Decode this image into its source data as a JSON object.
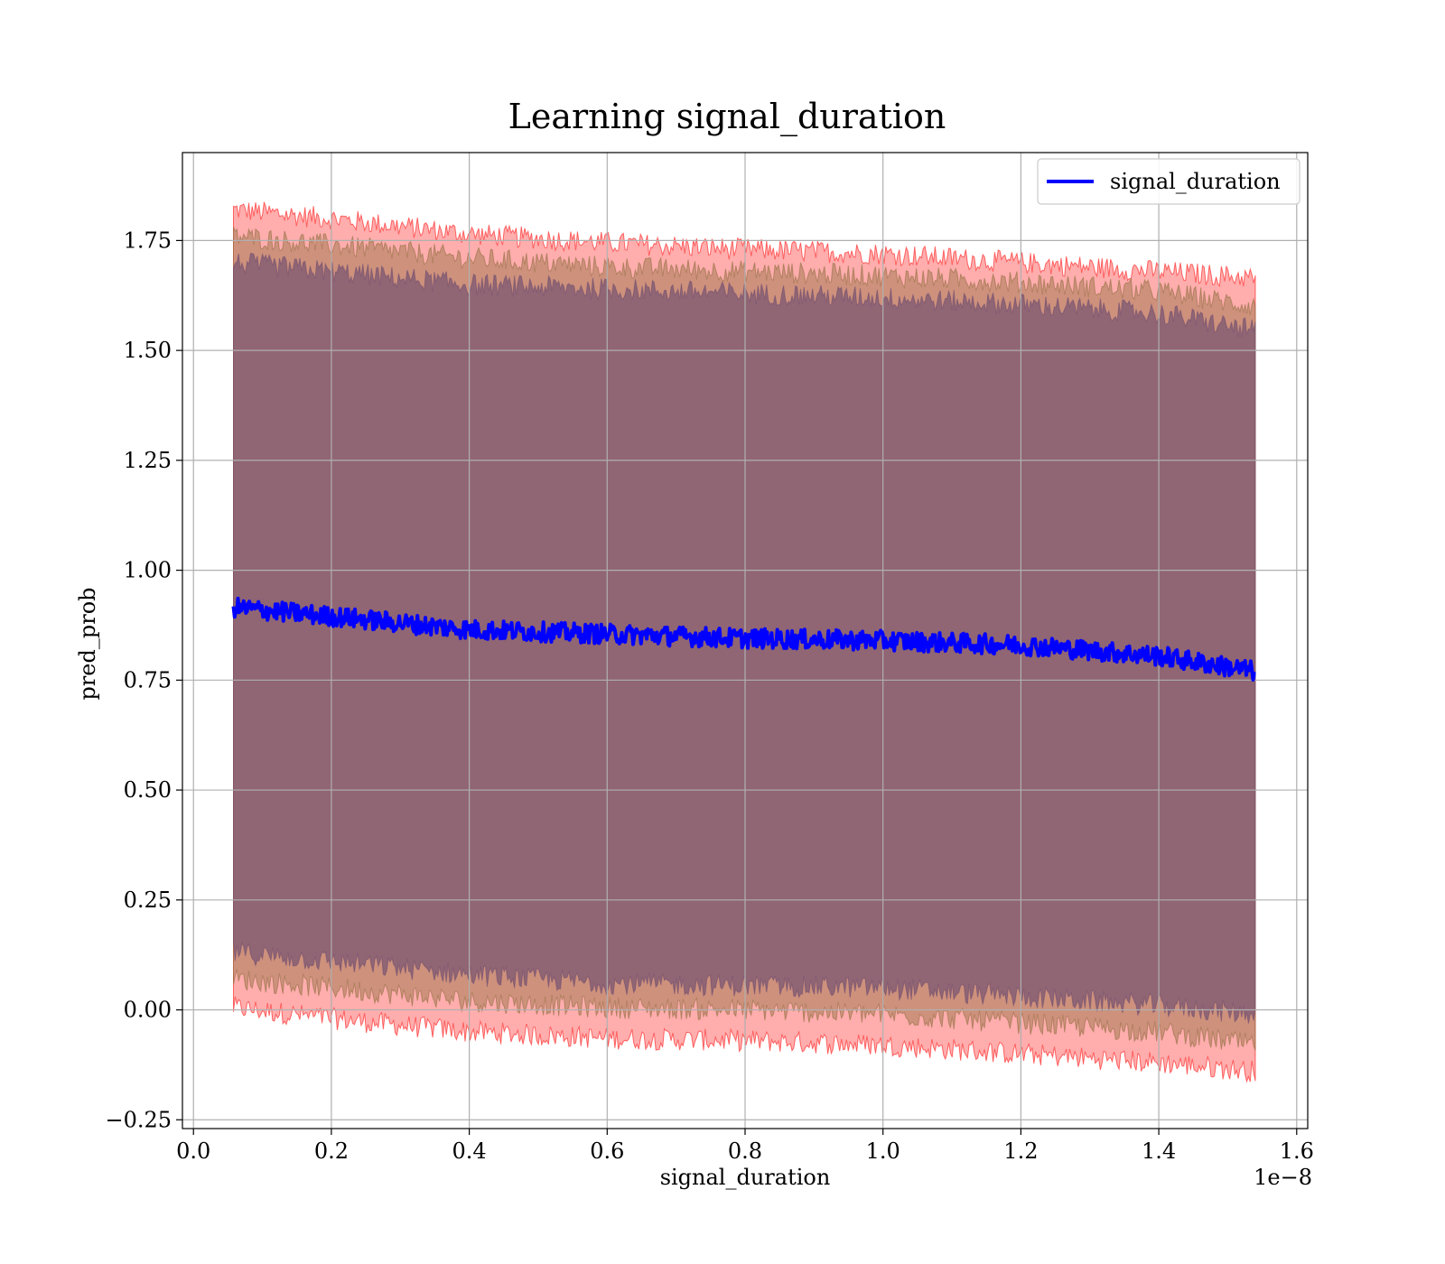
{
  "chart_data": {
    "type": "line",
    "title": "Learning signal_duration",
    "xlabel": "signal_duration",
    "ylabel": "pred_prob",
    "x_offset_text": "1e−8",
    "xlim": [
      -0.016,
      1.616
    ],
    "ylim": [
      -0.27,
      1.95
    ],
    "x_unit_scale": 1e-08,
    "xticks": [
      0.0,
      0.2,
      0.4,
      0.6,
      0.8,
      1.0,
      1.2,
      1.4,
      1.6
    ],
    "xtick_labels": [
      "0.0",
      "0.2",
      "0.4",
      "0.6",
      "0.8",
      "1.0",
      "1.2",
      "1.4",
      "1.6"
    ],
    "yticks": [
      -0.25,
      0.0,
      0.25,
      0.5,
      0.75,
      1.0,
      1.25,
      1.5,
      1.75
    ],
    "ytick_labels": [
      "−0.25",
      "0.00",
      "0.25",
      "0.50",
      "0.75",
      "1.00",
      "1.25",
      "1.50",
      "1.75"
    ],
    "grid": true,
    "legend_position": "top-right",
    "x_range": [
      0.058,
      1.54
    ],
    "series": [
      {
        "name": "signal_duration",
        "color": "#0000ff",
        "x": [
          0.06,
          0.2,
          0.4,
          0.6,
          0.8,
          1.0,
          1.2,
          1.4,
          1.54
        ],
        "y": [
          0.915,
          0.895,
          0.865,
          0.855,
          0.845,
          0.84,
          0.83,
          0.805,
          0.77
        ]
      }
    ],
    "bands": [
      {
        "kind": "outer",
        "color": "#ff0000",
        "opacity": 0.32,
        "x": [
          0.06,
          0.2,
          0.4,
          0.6,
          0.8,
          1.0,
          1.2,
          1.4,
          1.54
        ],
        "upper": [
          1.82,
          1.8,
          1.765,
          1.745,
          1.73,
          1.72,
          1.7,
          1.68,
          1.665
        ],
        "lower": [
          0.005,
          -0.02,
          -0.05,
          -0.065,
          -0.07,
          -0.08,
          -0.1,
          -0.12,
          -0.14
        ]
      },
      {
        "kind": "middle",
        "color": "#8b6b3a",
        "opacity": 0.42,
        "x": [
          0.06,
          0.2,
          0.4,
          0.6,
          0.8,
          1.0,
          1.2,
          1.4,
          1.54
        ],
        "upper": [
          1.76,
          1.74,
          1.71,
          1.69,
          1.68,
          1.67,
          1.655,
          1.635,
          1.6
        ],
        "lower": [
          0.07,
          0.05,
          0.02,
          0.005,
          0.0,
          -0.01,
          -0.03,
          -0.05,
          -0.08
        ]
      },
      {
        "kind": "inner",
        "color": "#6b4a70",
        "opacity": 0.62,
        "x": [
          0.06,
          0.2,
          0.4,
          0.6,
          0.8,
          1.0,
          1.2,
          1.4,
          1.54
        ],
        "upper": [
          1.7,
          1.68,
          1.65,
          1.64,
          1.63,
          1.62,
          1.605,
          1.585,
          1.545
        ],
        "lower": [
          0.13,
          0.11,
          0.08,
          0.06,
          0.055,
          0.05,
          0.03,
          0.01,
          -0.01
        ]
      }
    ]
  }
}
